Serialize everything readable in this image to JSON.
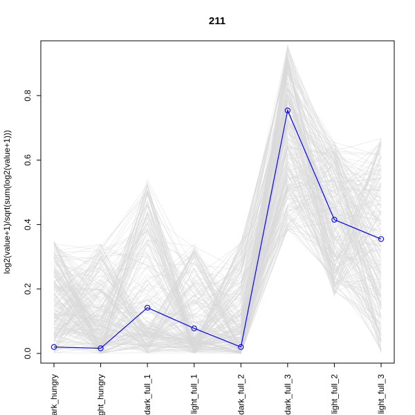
{
  "chart_data": {
    "type": "line",
    "title": "211",
    "xlabel": "",
    "ylabel": "log2(value+1)/sqrt(sum(log2(value+1)))",
    "categories": [
      "dark_hungry",
      "light_hungry",
      "dark_full_1",
      "light_full_1",
      "dark_full_2",
      "dark_full_3",
      "light_full_2",
      "light_full_3"
    ],
    "category_labels_displayed": [
      "ark_hungry",
      "ght_hungry",
      "dark_full_1",
      "light_full_1",
      "dark_full_2",
      "dark_full_3",
      "light_full_2",
      "light_full_3"
    ],
    "ylim": [
      -0.03,
      0.97
    ],
    "yticks": [
      0.0,
      0.2,
      0.4,
      0.6,
      0.8
    ],
    "ytick_labels": [
      "0.0",
      "0.2",
      "0.4",
      "0.6",
      "0.8"
    ],
    "series": [
      {
        "values": [
          0.02,
          0.016,
          0.142,
          0.078,
          0.02,
          0.754,
          0.415,
          0.355
        ],
        "color": "#0000ff",
        "marker": "open-circle"
      }
    ],
    "background_profiles": {
      "color": "#d9d9d9",
      "count": 220,
      "ranges": [
        [
          0.0,
          0.35
        ],
        [
          0.0,
          0.34
        ],
        [
          0.0,
          0.54
        ],
        [
          0.0,
          0.34
        ],
        [
          0.0,
          0.35
        ],
        [
          0.38,
          0.96
        ],
        [
          0.17,
          0.66
        ],
        [
          0.0,
          0.67
        ]
      ]
    },
    "grid": false,
    "legend": "none"
  }
}
